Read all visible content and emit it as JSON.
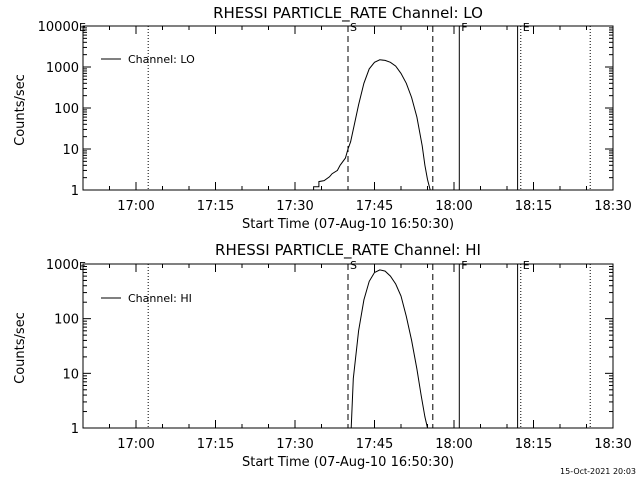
{
  "footer_timestamp": "15-Oct-2021 20:03",
  "chart_data": [
    {
      "type": "line",
      "title": "RHESSI PARTICLE_RATE Channel: LO",
      "xlabel": "Start Time (07-Aug-10 16:50:30)",
      "ylabel": "Counts/sec",
      "y_scale": "log",
      "ylim": [
        1,
        10000
      ],
      "y_ticks": [
        1,
        10,
        100,
        1000,
        10000
      ],
      "y_tick_labels": [
        "1",
        "10",
        "100",
        "1000",
        "10000"
      ],
      "xlim_minutes": [
        0,
        100
      ],
      "x_ticks_minutes": [
        10,
        25,
        40,
        55,
        70,
        85,
        100
      ],
      "x_tick_labels": [
        "17:00",
        "17:15",
        "17:30",
        "17:45",
        "18:00",
        "18:15",
        "18:30"
      ],
      "legend": {
        "placement": "top-left",
        "entries": [
          "Channel: LO"
        ]
      },
      "series": [
        {
          "name": "Channel: LO",
          "x_minutes": [
            43.5,
            43.5,
            44.5,
            44.5,
            45.5,
            46.5,
            47,
            48,
            48.5,
            49.5,
            50,
            50.5,
            51,
            52,
            53,
            54,
            55,
            56,
            57,
            58,
            59,
            60,
            61,
            62,
            63,
            64,
            64.5,
            65,
            65.5
          ],
          "y": [
            1,
            1.2,
            1.2,
            1.6,
            1.7,
            2.1,
            2.5,
            3.0,
            4.0,
            6.0,
            10,
            15,
            30,
            120,
            400,
            900,
            1300,
            1500,
            1450,
            1300,
            1050,
            700,
            400,
            180,
            60,
            12,
            4,
            1.8,
            1
          ]
        }
      ],
      "markers": [
        {
          "x_minutes": 12.3,
          "style": "dotted"
        },
        {
          "x_minutes": 50,
          "style": "dashed",
          "label": "S"
        },
        {
          "x_minutes": 66,
          "style": "dashed"
        },
        {
          "x_minutes": 71,
          "style": "solid",
          "label": "F"
        },
        {
          "x_minutes": 82,
          "style": "solid"
        },
        {
          "x_minutes": 82.6,
          "style": "dotted",
          "label": "E"
        },
        {
          "x_minutes": 95.7,
          "style": "dotted"
        }
      ],
      "edge_label": "E"
    },
    {
      "type": "line",
      "title": "RHESSI PARTICLE_RATE Channel: HI",
      "xlabel": "Start Time (07-Aug-10 16:50:30)",
      "ylabel": "Counts/sec",
      "y_scale": "log",
      "ylim": [
        1,
        1000
      ],
      "y_ticks": [
        1,
        10,
        100,
        1000
      ],
      "y_tick_labels": [
        "1",
        "10",
        "100",
        "1000"
      ],
      "xlim_minutes": [
        0,
        100
      ],
      "x_ticks_minutes": [
        10,
        25,
        40,
        55,
        70,
        85,
        100
      ],
      "x_tick_labels": [
        "17:00",
        "17:15",
        "17:30",
        "17:45",
        "18:00",
        "18:15",
        "18:30"
      ],
      "legend": {
        "placement": "top-left",
        "entries": [
          "Channel: HI"
        ]
      },
      "series": [
        {
          "name": "Channel: HI",
          "x_minutes": [
            50.6,
            51,
            52,
            53,
            54,
            55,
            56,
            57,
            58,
            59,
            60,
            61,
            62,
            63,
            63.8,
            64.5,
            65
          ],
          "y": [
            1,
            8,
            60,
            220,
            480,
            700,
            780,
            740,
            600,
            430,
            260,
            110,
            40,
            12,
            4,
            1.6,
            1
          ]
        }
      ],
      "markers": [
        {
          "x_minutes": 12.3,
          "style": "dotted"
        },
        {
          "x_minutes": 50,
          "style": "dashed",
          "label": "S"
        },
        {
          "x_minutes": 66,
          "style": "dashed"
        },
        {
          "x_minutes": 71,
          "style": "solid",
          "label": "F"
        },
        {
          "x_minutes": 82,
          "style": "solid"
        },
        {
          "x_minutes": 82.6,
          "style": "dotted",
          "label": "E"
        },
        {
          "x_minutes": 95.7,
          "style": "dotted"
        }
      ],
      "edge_label": "E"
    }
  ]
}
